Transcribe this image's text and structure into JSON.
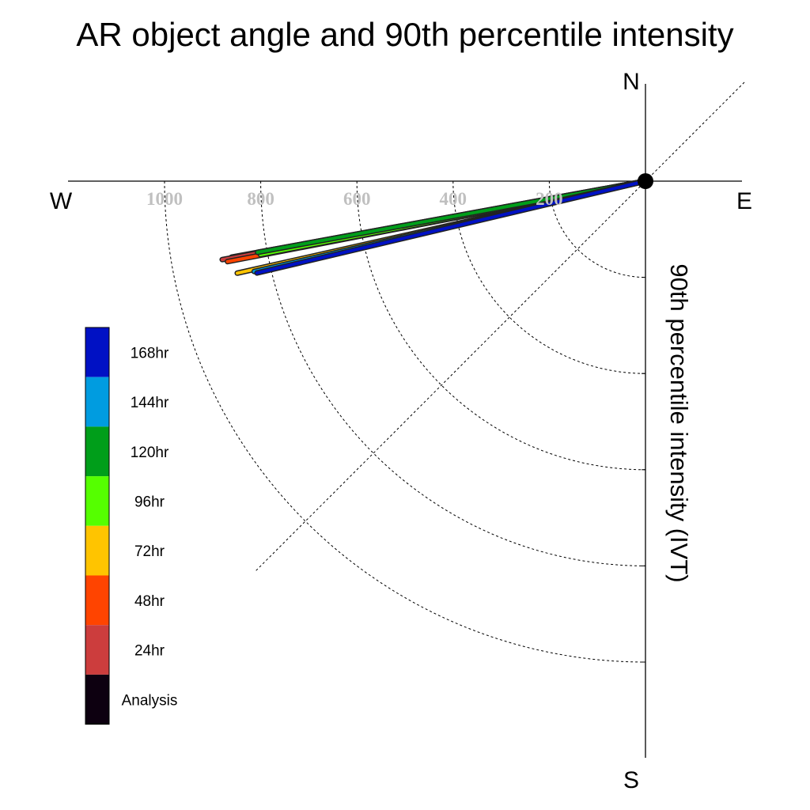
{
  "chart_data": {
    "type": "polar-vector",
    "title": "AR object angle and 90th percentile intensity",
    "ylabel": "90th percentile intensity (IVT)",
    "compass": {
      "north": "N",
      "south": "S",
      "east": "E",
      "west": "W"
    },
    "radial_ticks": [
      200,
      400,
      600,
      800,
      1000
    ],
    "radial_max": 1150,
    "grid": true,
    "legend_position": "left",
    "legend": [
      {
        "label": "168hr",
        "color": "#0011c4"
      },
      {
        "label": "144hr",
        "color": "#009ce0"
      },
      {
        "label": "120hr",
        "color": "#009e1a"
      },
      {
        "label": "96hr",
        "color": "#55ff00"
      },
      {
        "label": "72hr",
        "color": "#ffc400"
      },
      {
        "label": "48hr",
        "color": "#ff4400"
      },
      {
        "label": "24hr",
        "color": "#cc3d3d"
      },
      {
        "label": "Analysis",
        "color": "#0d0010"
      }
    ],
    "vectors": [
      {
        "name": "Analysis",
        "bearing": 259.6,
        "intensity": 875,
        "color": "#0d0010"
      },
      {
        "name": "24hr",
        "bearing": 259.5,
        "intensity": 895,
        "color": "#cc3d3d"
      },
      {
        "name": "48hr",
        "bearing": 259.1,
        "intensity": 885,
        "color": "#ff4400"
      },
      {
        "name": "96hr",
        "bearing": 259.2,
        "intensity": 815,
        "color": "#55ff00"
      },
      {
        "name": "120hr",
        "bearing": 259.6,
        "intensity": 820,
        "color": "#009e1a"
      },
      {
        "name": "72hr",
        "bearing": 257.3,
        "intensity": 870,
        "color": "#ffc400"
      },
      {
        "name": "144hr",
        "bearing": 257.0,
        "intensity": 835,
        "color": "#009ce0"
      },
      {
        "name": "168hr",
        "bearing": 256.7,
        "intensity": 830,
        "color": "#0011c4"
      }
    ]
  }
}
